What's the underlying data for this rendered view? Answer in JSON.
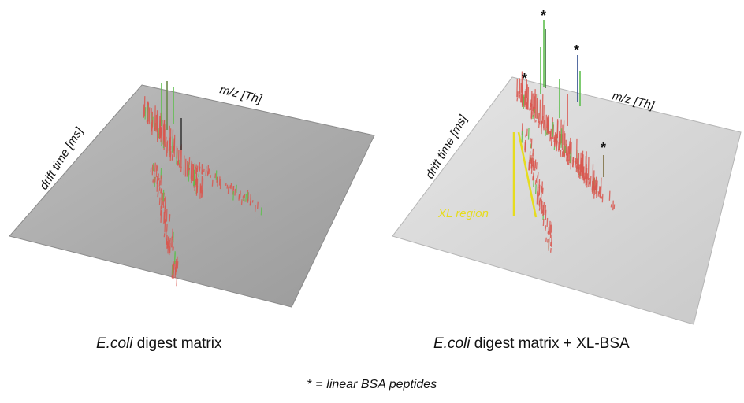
{
  "left_panel": {
    "axis_x_label": "m/z [Th]",
    "axis_y_label": "drift time [ms]",
    "caption_italic": "E.coli",
    "caption_rest": " digest matrix"
  },
  "right_panel": {
    "axis_x_label": "m/z [Th]",
    "axis_y_label": "drift time [ms]",
    "caption_italic": "E.coli",
    "caption_rest": " digest matrix + XL-BSA",
    "region_label": "XL region",
    "peak_marker": "*"
  },
  "footnote": {
    "prefix": "* = ",
    "text_italic": "linear BSA peptides"
  },
  "colors": {
    "plane_left": "#a9a9a9",
    "plane_right": "#d8d8d8",
    "peak_red": "#d9574f",
    "peak_green": "#5fbf4f",
    "region_yellow": "#e6dc1e"
  }
}
